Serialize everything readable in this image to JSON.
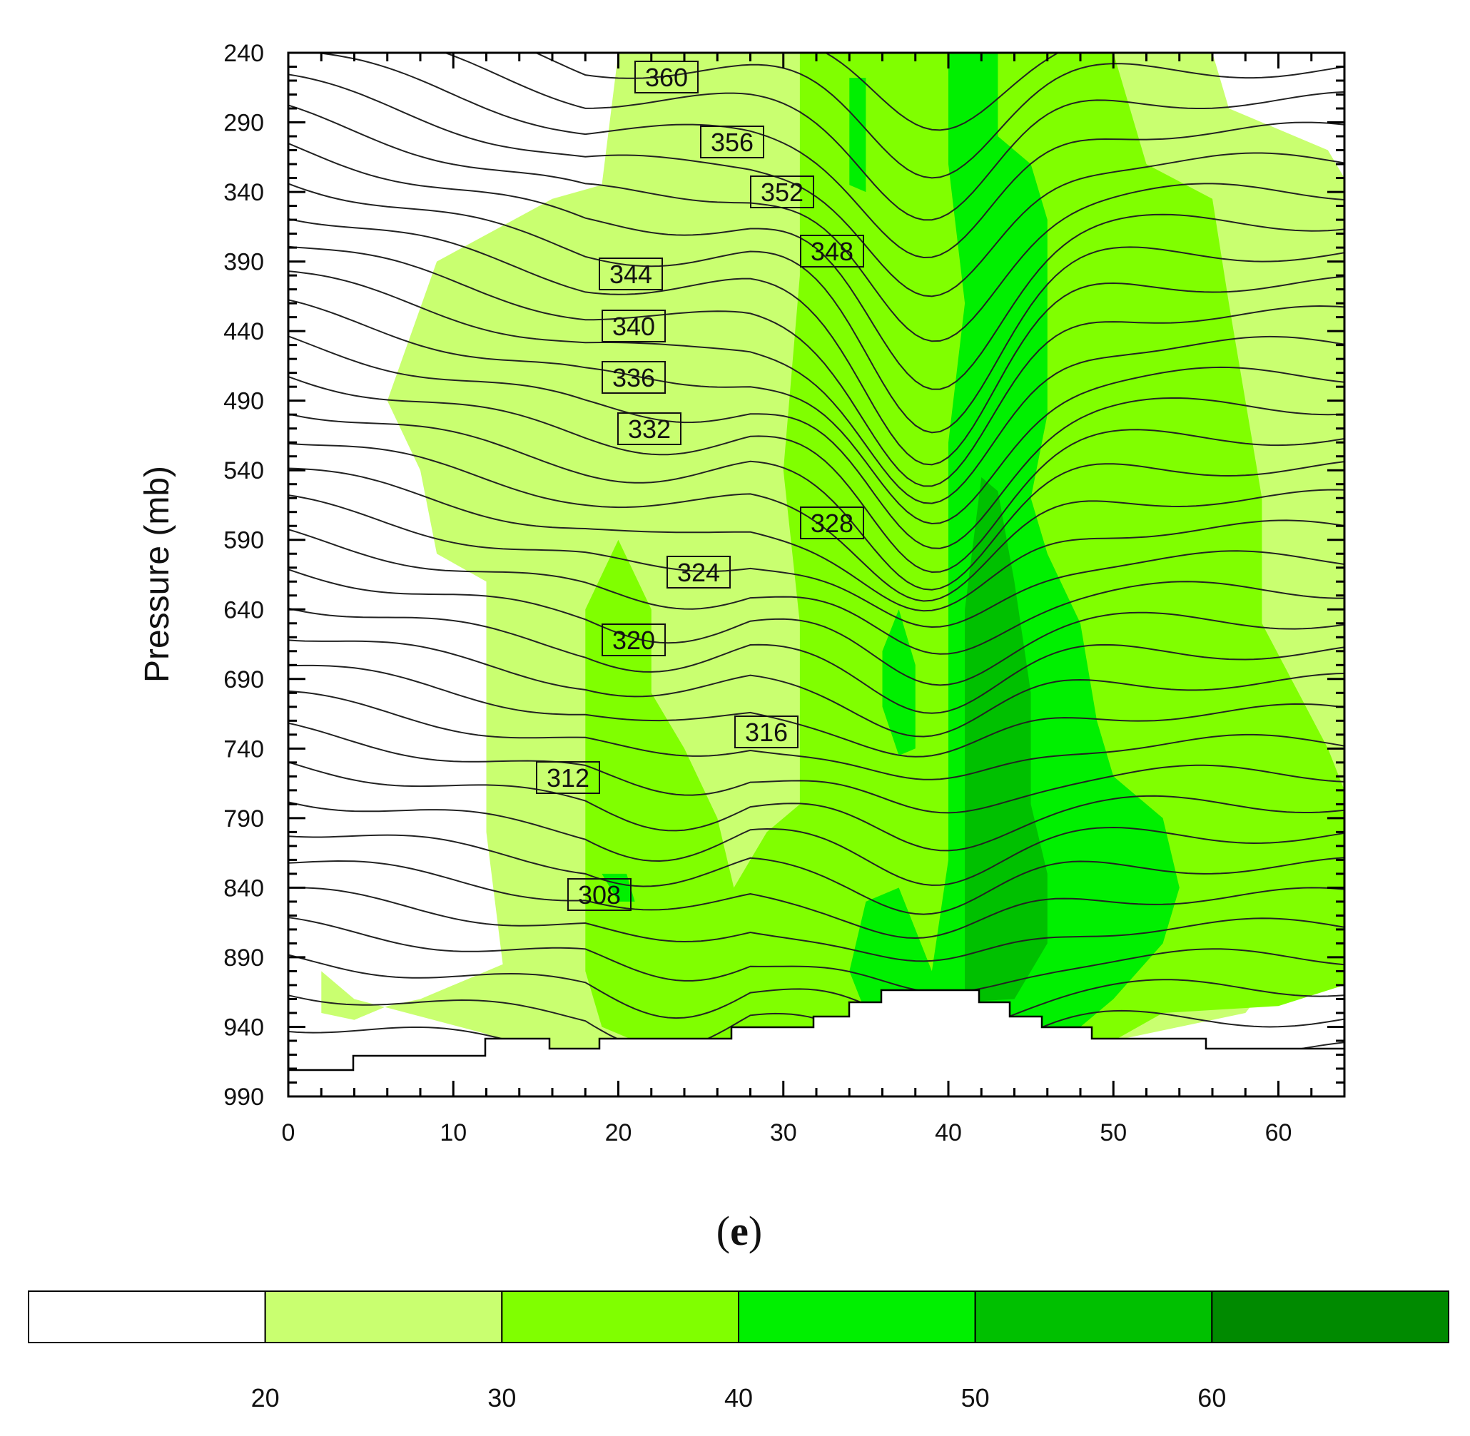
{
  "chart_data": {
    "type": "heatmap",
    "title": "",
    "panel_label_paren_open": "(",
    "panel_label_letter": "e",
    "panel_label_paren_close": ")",
    "ylabel": "Pressure (mb)",
    "xlabel": "",
    "xlim": [
      0,
      64
    ],
    "ylim": [
      990,
      240
    ],
    "x_ticks": [
      "0",
      "10",
      "20",
      "30",
      "40",
      "50",
      "60"
    ],
    "y_ticks": [
      "240",
      "290",
      "340",
      "390",
      "440",
      "490",
      "540",
      "590",
      "640",
      "690",
      "740",
      "790",
      "840",
      "890",
      "940",
      "990"
    ],
    "colorbar": {
      "ticks": [
        "20",
        "30",
        "40",
        "50",
        "60"
      ],
      "bins": [
        {
          "range": "<20",
          "color": "#ffffff"
        },
        {
          "range": "20-30",
          "color": "#c9ff70"
        },
        {
          "range": "30-40",
          "color": "#80ff00"
        },
        {
          "range": "40-50",
          "color": "#00f000"
        },
        {
          "range": "50-60",
          "color": "#00c000"
        },
        {
          "range": ">60",
          "color": "#008a00"
        }
      ]
    },
    "shaded_regions": [
      {
        "level": 20,
        "polygon": [
          [
            6,
            490
          ],
          [
            9,
            390
          ],
          [
            16,
            345
          ],
          [
            19,
            335
          ],
          [
            20,
            240
          ],
          [
            56,
            240
          ],
          [
            57,
            280
          ],
          [
            63,
            310
          ],
          [
            64,
            330
          ],
          [
            64,
            800
          ],
          [
            62,
            870
          ],
          [
            58,
            930
          ],
          [
            50,
            950
          ],
          [
            30,
            955
          ],
          [
            20,
            962
          ],
          [
            15,
            962
          ],
          [
            12,
            945
          ],
          [
            4,
            920
          ],
          [
            2,
            900
          ],
          [
            2,
            930
          ],
          [
            4,
            935
          ],
          [
            6,
            925
          ],
          [
            8,
            920
          ],
          [
            11,
            905
          ],
          [
            13,
            895
          ],
          [
            12,
            800
          ],
          [
            12,
            620
          ],
          [
            9,
            600
          ],
          [
            8,
            540
          ]
        ]
      },
      {
        "level": 30,
        "polygon": [
          [
            31,
            240
          ],
          [
            50,
            240
          ],
          [
            52,
            320
          ],
          [
            56,
            345
          ],
          [
            57,
            420
          ],
          [
            59,
            560
          ],
          [
            59,
            650
          ],
          [
            63,
            740
          ],
          [
            64,
            770
          ],
          [
            64,
            910
          ],
          [
            60,
            925
          ],
          [
            53,
            930
          ],
          [
            50,
            950
          ],
          [
            30,
            955
          ],
          [
            22,
            955
          ],
          [
            19,
            940
          ],
          [
            18,
            900
          ],
          [
            18,
            640
          ],
          [
            20,
            590
          ],
          [
            22,
            640
          ],
          [
            22,
            700
          ],
          [
            24,
            740
          ],
          [
            26,
            790
          ],
          [
            27,
            840
          ],
          [
            29,
            800
          ],
          [
            31,
            780
          ],
          [
            31,
            650
          ],
          [
            30,
            540
          ],
          [
            31,
            400
          ],
          [
            31,
            340
          ]
        ]
      },
      {
        "level": 40,
        "polygon": [
          [
            40,
            240
          ],
          [
            43,
            240
          ],
          [
            43,
            300
          ],
          [
            45,
            320
          ],
          [
            46,
            360
          ],
          [
            46,
            500
          ],
          [
            45,
            560
          ],
          [
            46,
            600
          ],
          [
            48,
            650
          ],
          [
            49,
            720
          ],
          [
            50,
            760
          ],
          [
            53,
            790
          ],
          [
            54,
            840
          ],
          [
            53,
            880
          ],
          [
            50,
            920
          ],
          [
            48,
            940
          ],
          [
            44,
            955
          ],
          [
            40,
            945
          ],
          [
            35,
            930
          ],
          [
            34,
            900
          ],
          [
            35,
            850
          ],
          [
            37,
            840
          ],
          [
            38,
            870
          ],
          [
            39,
            900
          ],
          [
            40,
            820
          ],
          [
            40,
            700
          ],
          [
            40,
            600
          ],
          [
            40,
            520
          ],
          [
            41,
            420
          ],
          [
            40,
            320
          ]
        ]
      },
      {
        "level": 40,
        "polygon": [
          [
            19,
            830
          ],
          [
            20,
            850
          ],
          [
            21,
            850
          ],
          [
            20.5,
            830
          ]
        ]
      },
      {
        "level": 40,
        "polygon": [
          [
            34,
            258
          ],
          [
            35,
            258
          ],
          [
            35,
            340
          ],
          [
            34,
            335
          ]
        ]
      },
      {
        "level": 40,
        "polygon": [
          [
            36,
            670
          ],
          [
            37,
            640
          ],
          [
            38,
            680
          ],
          [
            38,
            740
          ],
          [
            37,
            745
          ],
          [
            36,
            710
          ]
        ]
      },
      {
        "level": 50,
        "polygon": [
          [
            42,
            545
          ],
          [
            43,
            555
          ],
          [
            44,
            620
          ],
          [
            45,
            700
          ],
          [
            45,
            780
          ],
          [
            46,
            830
          ],
          [
            46,
            880
          ],
          [
            44,
            920
          ],
          [
            41,
            922
          ],
          [
            41,
            850
          ],
          [
            41,
            760
          ],
          [
            41,
            640
          ]
        ]
      }
    ],
    "contour_labels": [
      "360",
      "356",
      "352",
      "348",
      "344",
      "340",
      "336",
      "332",
      "328",
      "324",
      "320",
      "316",
      "312",
      "308"
    ]
  }
}
